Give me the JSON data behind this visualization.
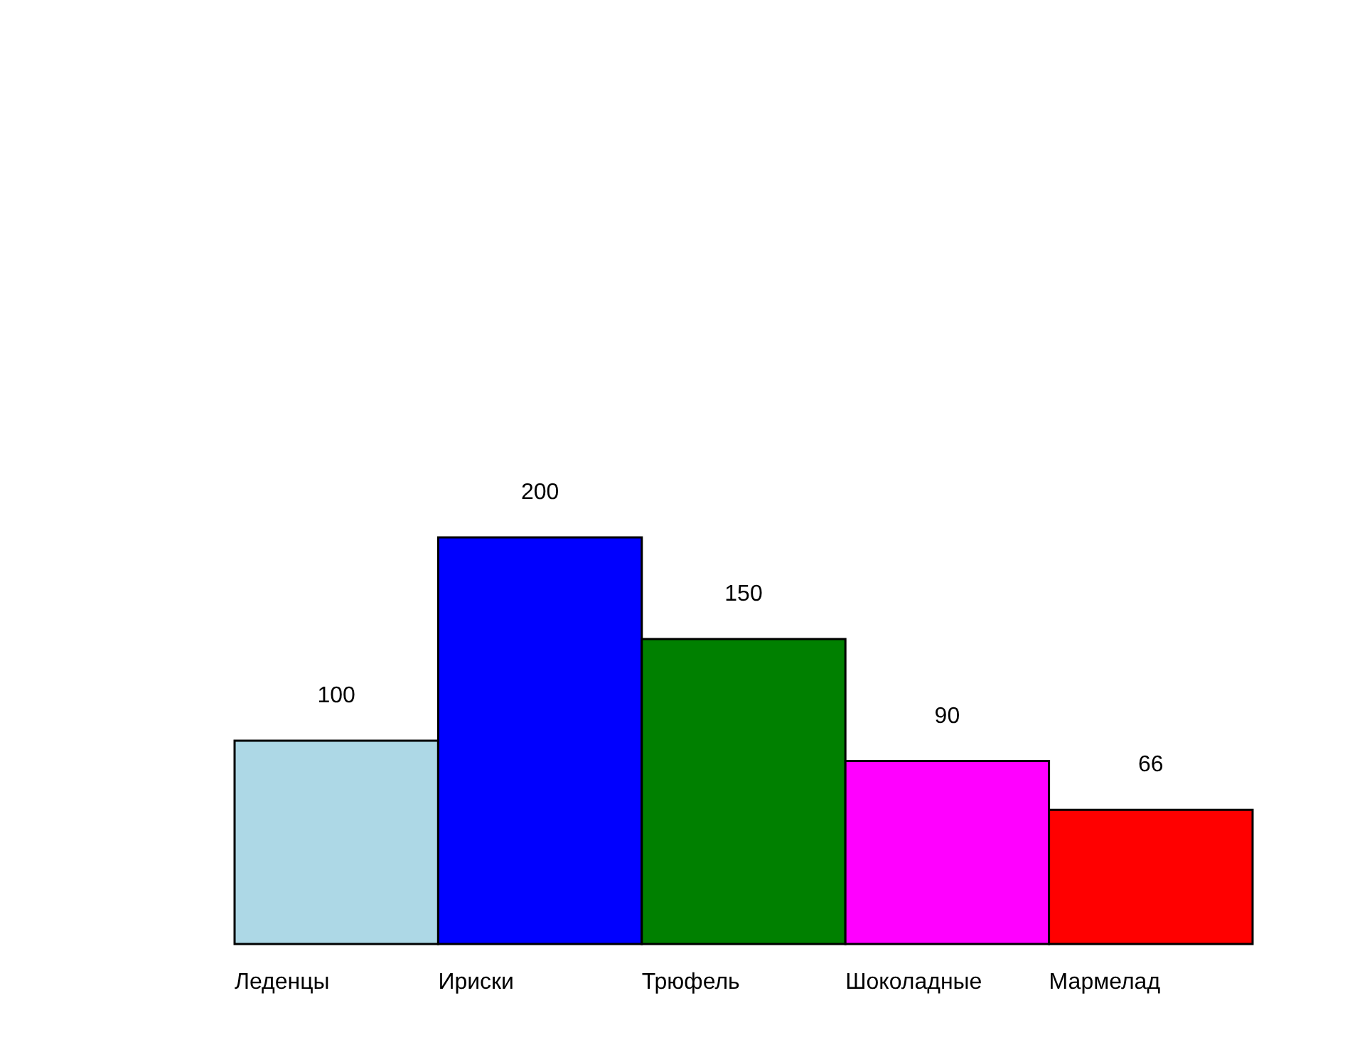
{
  "chart_data": {
    "type": "bar",
    "categories": [
      "Леденцы",
      "Ириски",
      "Трюфель",
      "Шоколадные",
      "Мармелад"
    ],
    "values": [
      100,
      200,
      150,
      90,
      66
    ],
    "colors": [
      "#add8e6",
      "#0000ff",
      "#008000",
      "#ff00ff",
      "#ff0000"
    ],
    "data_labels": true
  }
}
